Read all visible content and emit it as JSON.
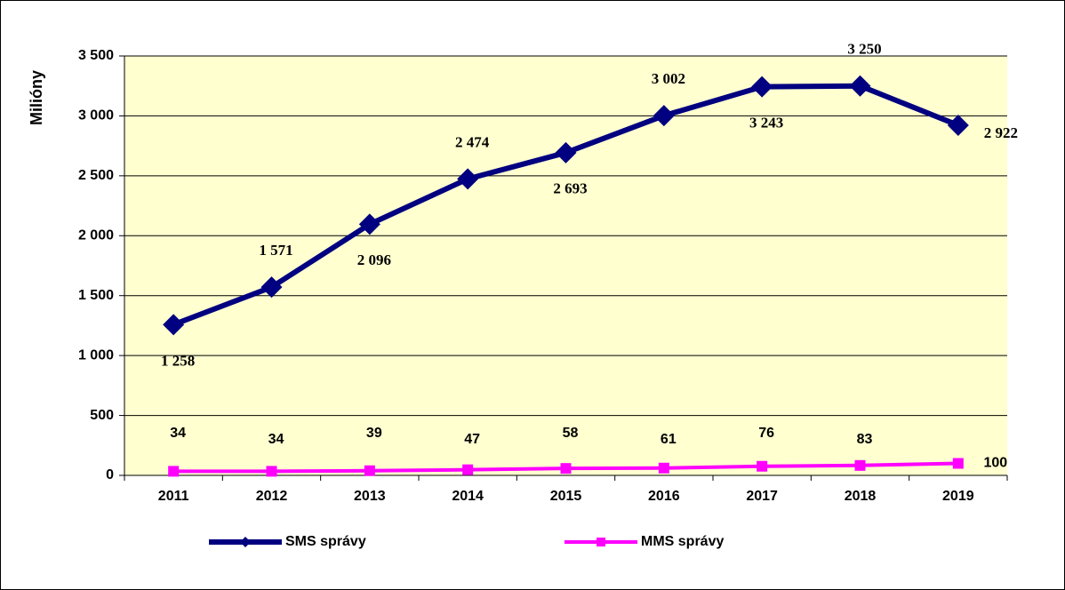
{
  "chart_data": {
    "type": "line",
    "y_label": "Milióny",
    "categories": [
      "2011",
      "2012",
      "2013",
      "2014",
      "2015",
      "2016",
      "2017",
      "2018",
      "2019"
    ],
    "series": [
      {
        "name": "SMS správy",
        "color": "#000080",
        "values": [
          1258,
          1571,
          2096,
          2474,
          2693,
          3002,
          3243,
          3250,
          2922
        ],
        "value_labels": [
          "1 258",
          "1 571",
          "2 096",
          "2 474",
          "2 693",
          "3 002",
          "3 243",
          "3 250",
          "2 922"
        ]
      },
      {
        "name": "MMS správy",
        "color": "#ff00ff",
        "values": [
          34,
          34,
          39,
          47,
          58,
          61,
          76,
          83,
          100
        ]
      }
    ],
    "ylim": [
      0,
      3500
    ],
    "yticks": [
      0,
      500,
      {
        "value": 1000,
        "label": "1 000"
      },
      {
        "value": 1500,
        "label": "1 500"
      },
      {
        "value": 2000,
        "label": "2 000"
      },
      {
        "value": 2500,
        "label": "2 500"
      },
      {
        "value": 3000,
        "label": "3 000"
      },
      {
        "value": 3500,
        "label": "3 500"
      }
    ],
    "grid": true,
    "plot_background": "#ffffd0"
  }
}
